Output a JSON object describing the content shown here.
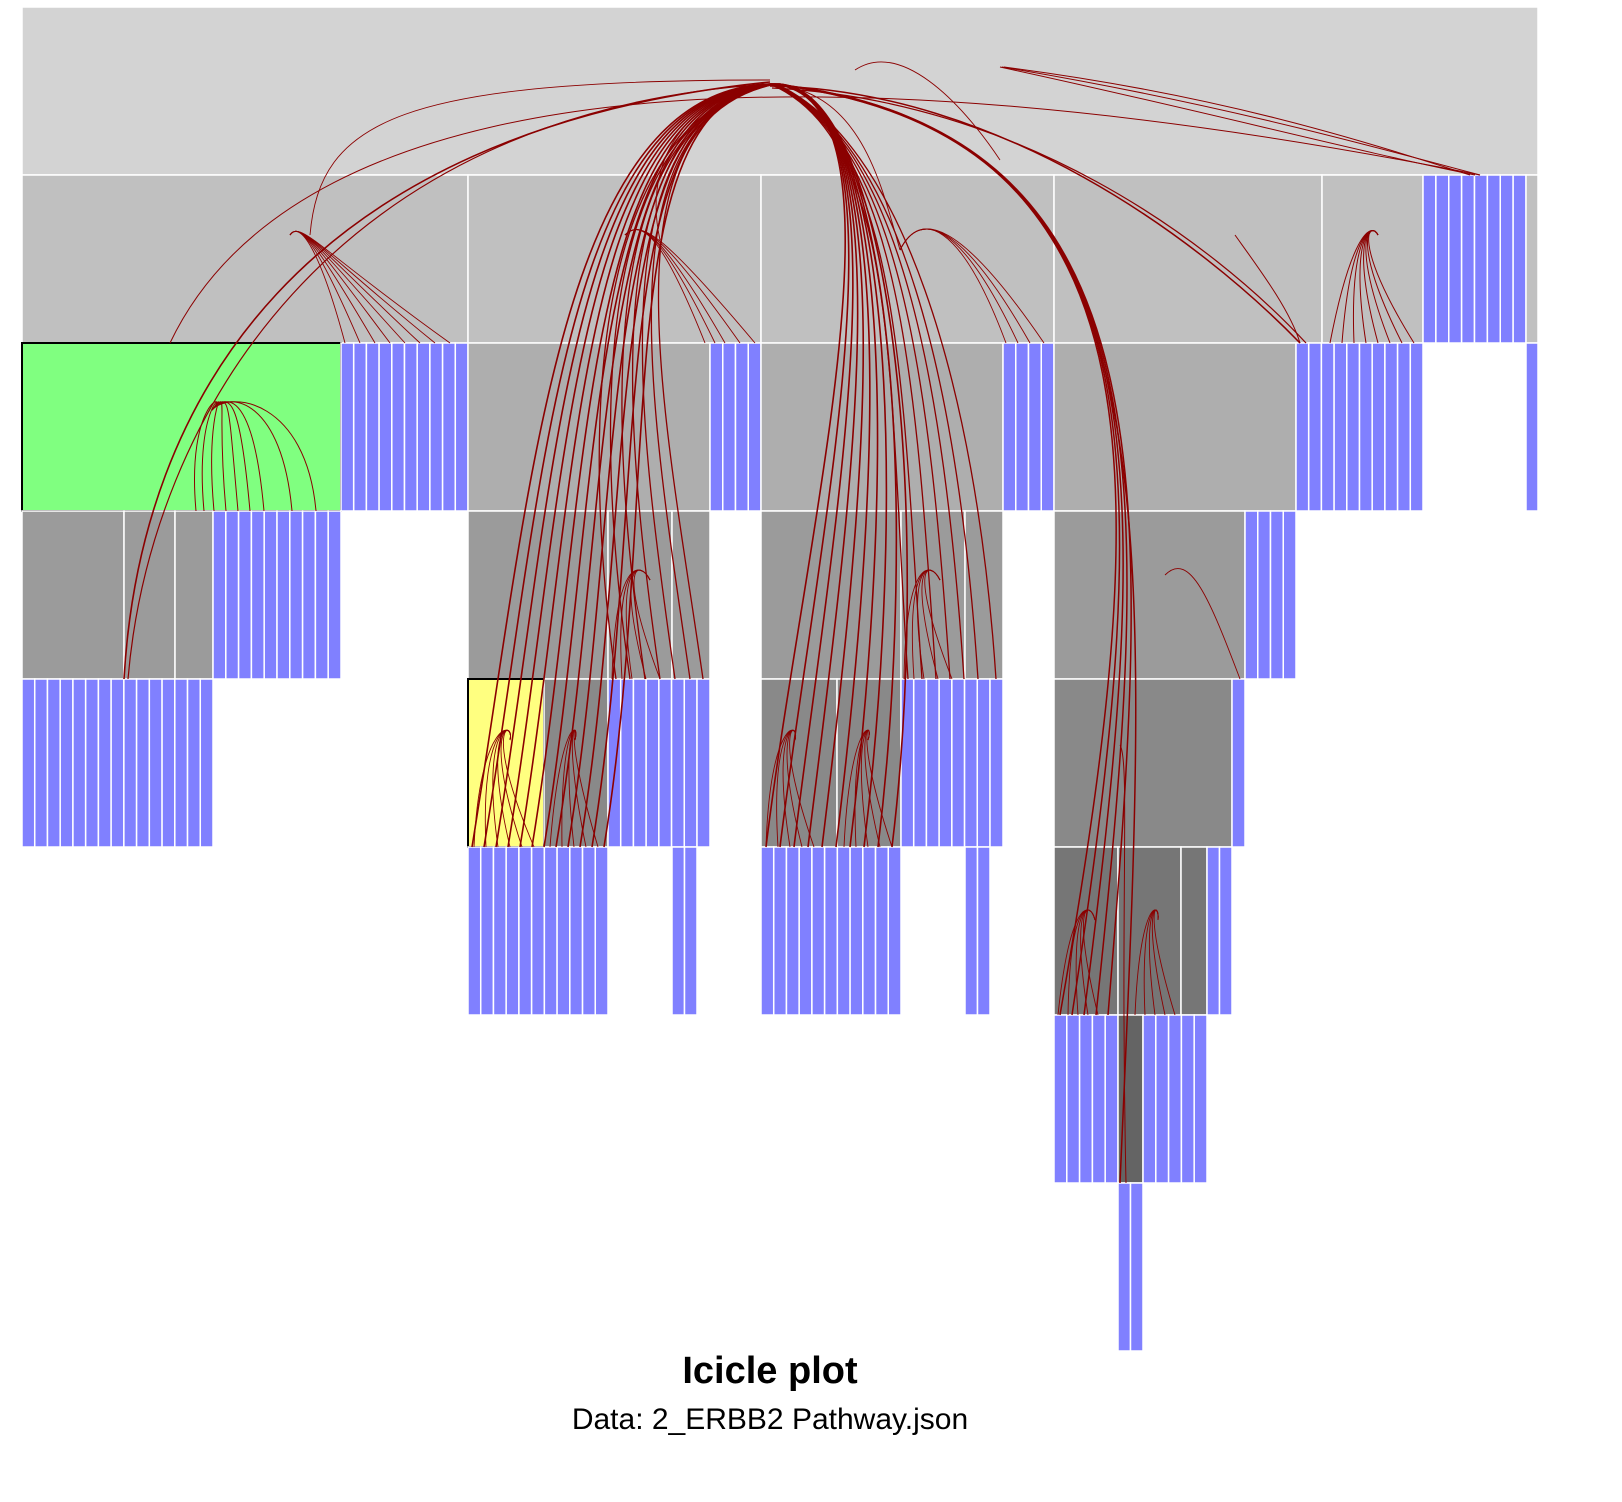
{
  "title": "Icicle plot",
  "subtitle": "Data: 2_ERBB2 Pathway.json",
  "colors": {
    "level0": "#d3d3d3",
    "level1": "#c0c0c0",
    "level2": "#aeaeae",
    "level3": "#9b9b9b",
    "level4": "#898989",
    "level5": "#767676",
    "level6": "#646464",
    "leaf": "#8080ff",
    "highlight_green": "#80ff80",
    "highlight_yellow": "#ffff80",
    "edge": "#8b0000",
    "separator": "#ffffff"
  }
}
